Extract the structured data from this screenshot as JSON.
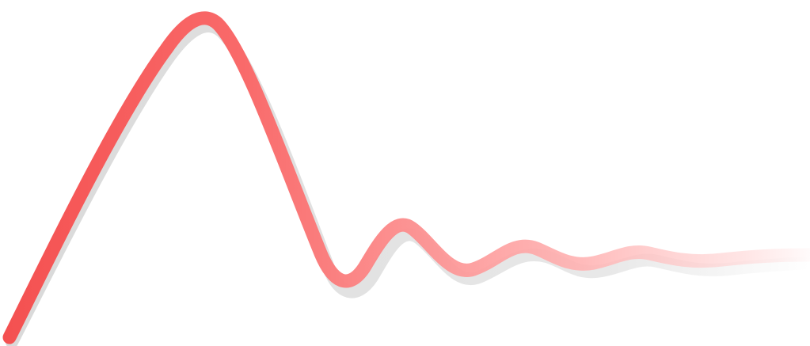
{
  "graphic": {
    "subject": "damped-oscillation-curve",
    "stroke_color_start": "#f45050",
    "stroke_color_end": "#ffd4d4",
    "shadow_color": "#d9d9d9",
    "background": "#ffffff"
  }
}
